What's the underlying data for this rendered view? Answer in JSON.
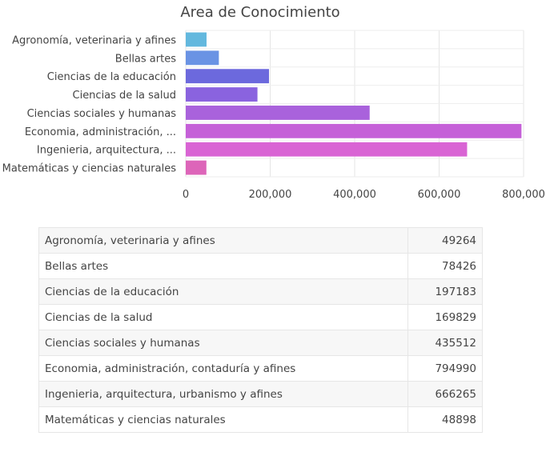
{
  "chart_data": {
    "type": "bar",
    "orientation": "horizontal",
    "title": "Area de Conocimiento",
    "xlabel": "",
    "ylabel": "",
    "xlim": [
      0,
      800000
    ],
    "x_ticks": [
      "0",
      "200,000",
      "400,000",
      "600,000",
      "800,000"
    ],
    "x_tick_values": [
      0,
      200000,
      400000,
      600000,
      800000
    ],
    "grid": true,
    "legend": "none",
    "categories": [
      "Agronomía, veterinaria y afines",
      "Bellas artes",
      "Ciencias de la educación",
      "Ciencias de la salud",
      "Ciencias sociales y humanas",
      "Economia, administración, ...",
      "Ingenieria, arquitectura, ...",
      "Matemáticas y ciencias naturales"
    ],
    "values": [
      49264,
      78426,
      197183,
      169829,
      435512,
      794990,
      666265,
      48898
    ],
    "colors": [
      "#63b8de",
      "#6a93e4",
      "#6c69dd",
      "#8a63df",
      "#a962dc",
      "#c560d8",
      "#d964d4",
      "#dd65b9"
    ]
  },
  "table": {
    "rows": [
      {
        "label": "Agronomía, veterinaria y afines",
        "value": "49264"
      },
      {
        "label": "Bellas artes",
        "value": "78426"
      },
      {
        "label": "Ciencias de la educación",
        "value": "197183"
      },
      {
        "label": "Ciencias de la salud",
        "value": "169829"
      },
      {
        "label": "Ciencias sociales y humanas",
        "value": "435512"
      },
      {
        "label": "Economia, administración, contaduría y afines",
        "value": "794990"
      },
      {
        "label": "Ingenieria, arquitectura, urbanismo y afines",
        "value": "666265"
      },
      {
        "label": "Matemáticas y ciencias naturales",
        "value": "48898"
      }
    ]
  }
}
